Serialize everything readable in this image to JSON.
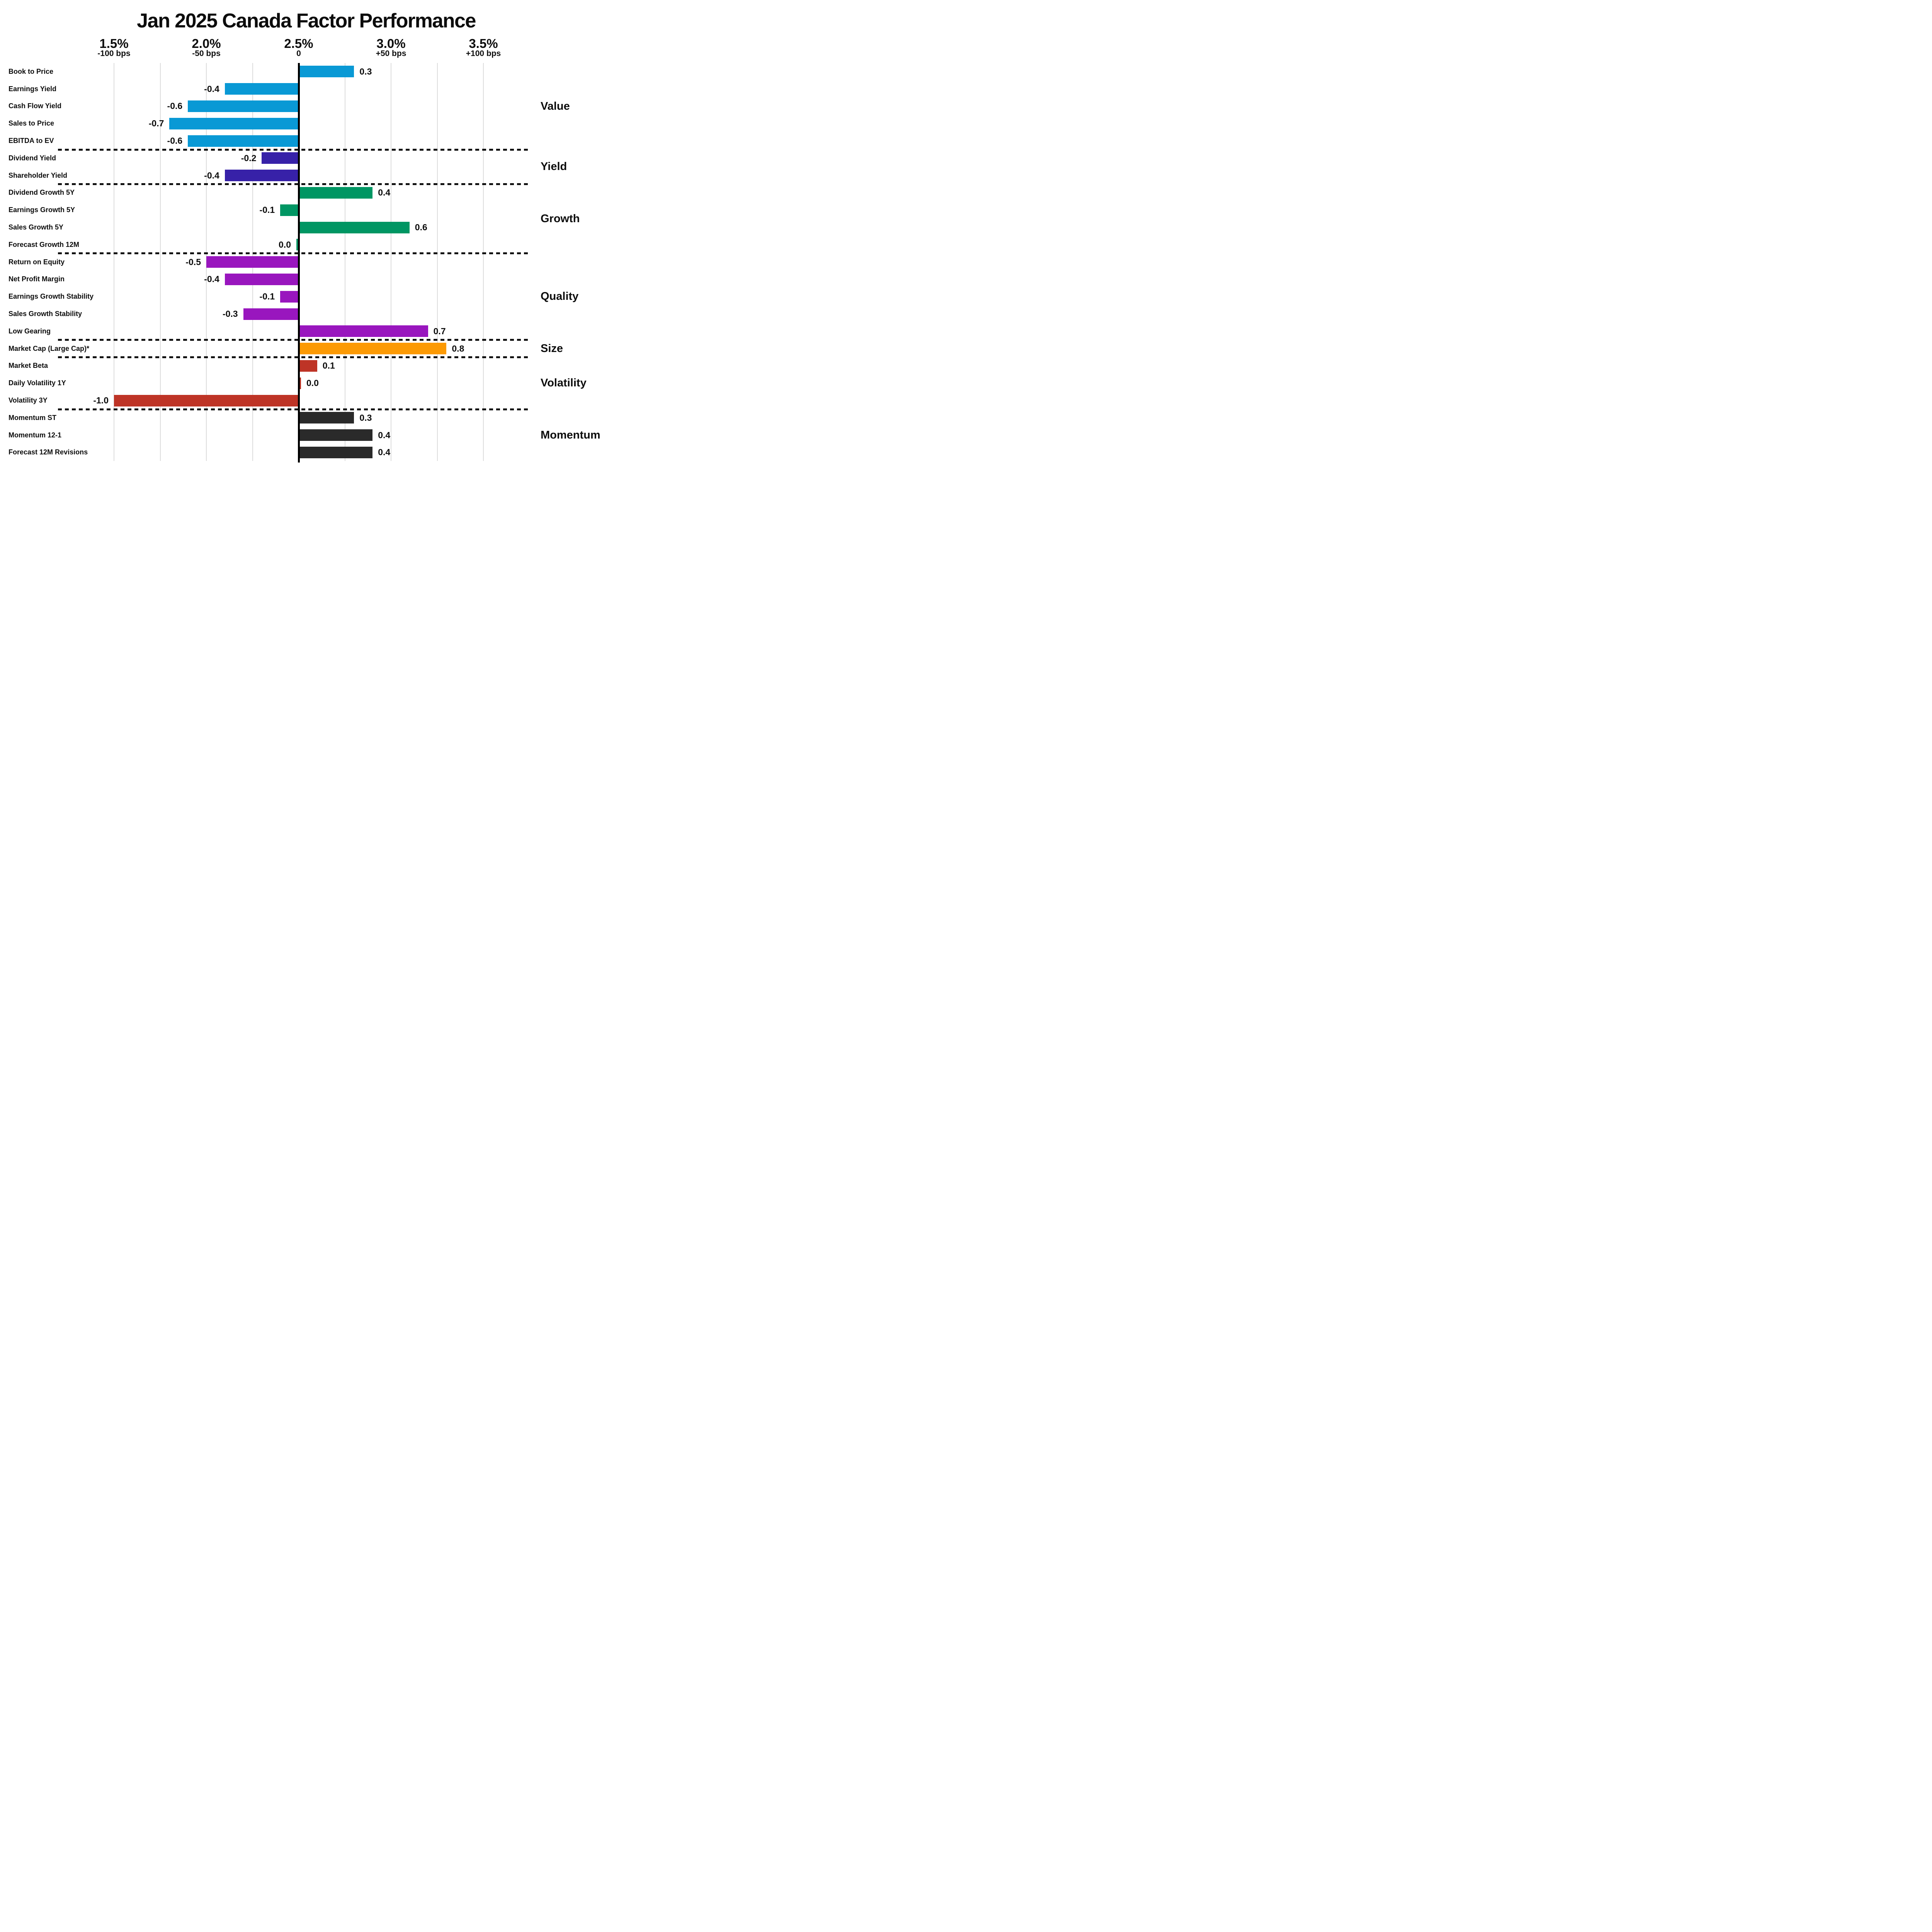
{
  "title": "Jan 2025 Canada Factor Performance",
  "chart_data": {
    "type": "bar",
    "orientation": "horizontal",
    "title": "Jan 2025 Canada Factor Performance",
    "top_axis": {
      "range": [
        1.5,
        3.5
      ],
      "zero_at": 2.5,
      "grid": true,
      "units_note": "bar values are percent returns shown as bps offsets from the 2.5% zero line",
      "ticks": [
        {
          "value": 1.5,
          "percent_label": "1.5%",
          "bps_label": "-100 bps"
        },
        {
          "value": 2.0,
          "percent_label": "2.0%",
          "bps_label": "-50 bps"
        },
        {
          "value": 2.5,
          "percent_label": "2.5%",
          "bps_label": "0"
        },
        {
          "value": 3.0,
          "percent_label": "3.0%",
          "bps_label": "+50 bps"
        },
        {
          "value": 3.5,
          "percent_label": "3.5%",
          "bps_label": "+100 bps"
        }
      ],
      "minor_gridlines": [
        1.75,
        2.25,
        2.75,
        3.25
      ]
    },
    "legend_position": "right group labels",
    "groups": [
      {
        "name": "Value",
        "color": "#0999d5",
        "items": [
          {
            "label": "Book to Price",
            "value": 0.3,
            "display": "0.3"
          },
          {
            "label": "Earnings Yield",
            "value": -0.4,
            "display": "-0.4"
          },
          {
            "label": "Cash Flow Yield",
            "value": -0.6,
            "display": "-0.6"
          },
          {
            "label": "Sales to Price",
            "value": -0.7,
            "display": "-0.7"
          },
          {
            "label": "EBITDA to EV",
            "value": -0.6,
            "display": "-0.6"
          }
        ]
      },
      {
        "name": "Yield",
        "color": "#3721a8",
        "items": [
          {
            "label": "Dividend Yield",
            "value": -0.2,
            "display": "-0.2"
          },
          {
            "label": "Shareholder Yield",
            "value": -0.4,
            "display": "-0.4"
          }
        ]
      },
      {
        "name": "Growth",
        "color": "#009663",
        "items": [
          {
            "label": "Dividend Growth 5Y",
            "value": 0.4,
            "display": "0.4"
          },
          {
            "label": "Earnings Growth 5Y",
            "value": -0.1,
            "display": "-0.1"
          },
          {
            "label": "Sales Growth 5Y",
            "value": 0.6,
            "display": "0.6"
          },
          {
            "label": "Forecast Growth 12M",
            "value": 0.0,
            "display": "0.0",
            "zero_side": "left"
          }
        ]
      },
      {
        "name": "Quality",
        "color": "#9916be",
        "items": [
          {
            "label": "Return on Equity",
            "value": -0.5,
            "display": "-0.5"
          },
          {
            "label": "Net Profit Margin",
            "value": -0.4,
            "display": "-0.4"
          },
          {
            "label": "Earnings Growth Stability",
            "value": -0.1,
            "display": "-0.1"
          },
          {
            "label": "Sales Growth Stability",
            "value": -0.3,
            "display": "-0.3"
          },
          {
            "label": "Low Gearing",
            "value": 0.7,
            "display": "0.7"
          }
        ]
      },
      {
        "name": "Size",
        "color": "#fc9a04",
        "items": [
          {
            "label": "Market Cap (Large Cap)*",
            "value": 0.8,
            "display": "0.8"
          }
        ]
      },
      {
        "name": "Volatility",
        "color": "#be3426",
        "items": [
          {
            "label": "Market Beta",
            "value": 0.1,
            "display": "0.1"
          },
          {
            "label": "Daily Volatility 1Y",
            "value": 0.0,
            "display": "0.0",
            "zero_side": "right"
          },
          {
            "label": "Volatility 3Y",
            "value": -1.0,
            "display": "-1.0"
          }
        ]
      },
      {
        "name": "Momentum",
        "color": "#2a2a2a",
        "items": [
          {
            "label": "Momentum ST",
            "value": 0.3,
            "display": "0.3"
          },
          {
            "label": "Momentum 12-1",
            "value": 0.4,
            "display": "0.4"
          },
          {
            "label": "Forecast 12M Revisions",
            "value": 0.4,
            "display": "0.4"
          }
        ]
      }
    ],
    "styles": {
      "grid_color": "#dcdcdc",
      "zero_line_color": "#000000",
      "separator_color": "#111111",
      "text_color": "#0d0d0d",
      "background": "#ffffff"
    }
  }
}
